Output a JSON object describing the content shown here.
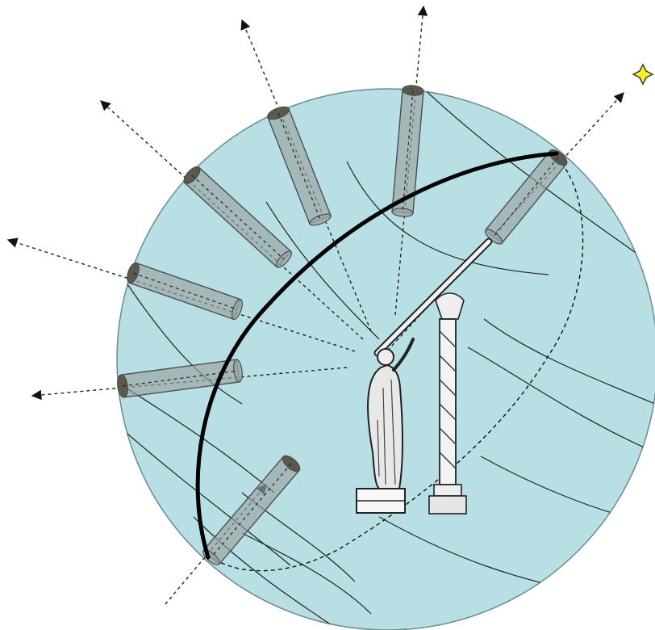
{
  "diagram": {
    "colors": {
      "sphere_fill": "#b8dfe3",
      "sphere_stroke": "#6a8c90",
      "arc_stroke": "#000000",
      "tube_fill": "#9aa3a3",
      "tube_stroke": "#4b4f4f",
      "line_stroke": "#3a3a3a",
      "star_fill": "#f5f02a"
    },
    "icons": {
      "observer": "astronomer-with-telescope-icon",
      "column": "ornate-column-icon",
      "star": "four-point-star-icon"
    }
  }
}
